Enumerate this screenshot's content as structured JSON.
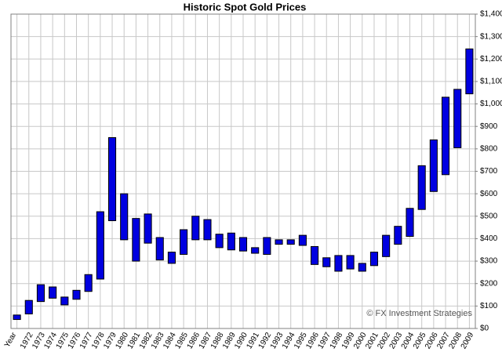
{
  "chart_data": {
    "type": "range_bar",
    "title": "Historic Spot Gold Prices",
    "x_label": "Year",
    "watermark": "© FX Investment Strategies",
    "categories": [
      null,
      "1972",
      "1973",
      "1974",
      "1975",
      "1976",
      "1977",
      "1978",
      "1979",
      "1980",
      "1981",
      "1982",
      "1983",
      "1984",
      "1985",
      "1986",
      "1987",
      "1988",
      "1989",
      "1990",
      "1991",
      "1992",
      "1993",
      "1994",
      "1995",
      "1996",
      "1997",
      "1998",
      "1999",
      "2000",
      "2001",
      "2002",
      "2003",
      "2004",
      "2005",
      "2006",
      "2007",
      "2008",
      "2009"
    ],
    "low": [
      40,
      65,
      120,
      135,
      105,
      130,
      165,
      220,
      480,
      395,
      300,
      380,
      305,
      290,
      330,
      395,
      395,
      360,
      350,
      345,
      335,
      330,
      375,
      375,
      370,
      285,
      275,
      255,
      265,
      255,
      280,
      320,
      375,
      410,
      530,
      610,
      685,
      805,
      1045
    ],
    "high": [
      60,
      125,
      195,
      185,
      140,
      170,
      240,
      520,
      850,
      600,
      490,
      510,
      405,
      340,
      440,
      500,
      485,
      420,
      425,
      405,
      360,
      405,
      395,
      395,
      415,
      365,
      315,
      325,
      325,
      290,
      340,
      415,
      455,
      535,
      725,
      840,
      1030,
      1065,
      1245
    ],
    "color": "#0000e0",
    "ylim": [
      0,
      1400
    ],
    "yticks": [
      {
        "value": 0,
        "label": "$0"
      },
      {
        "value": 100,
        "label": "$100"
      },
      {
        "value": 200,
        "label": "$200"
      },
      {
        "value": 300,
        "label": "$300"
      },
      {
        "value": 400,
        "label": "$400"
      },
      {
        "value": 500,
        "label": "$500"
      },
      {
        "value": 600,
        "label": "$600"
      },
      {
        "value": 700,
        "label": "$700"
      },
      {
        "value": 800,
        "label": "$800"
      },
      {
        "value": 900,
        "label": "$900"
      },
      {
        "value": 1000,
        "label": "$1,000"
      },
      {
        "value": 1100,
        "label": "$1,100"
      },
      {
        "value": 1200,
        "label": "$1,200"
      },
      {
        "value": 1300,
        "label": "$1,300"
      },
      {
        "value": 1400,
        "label": "$1,400"
      }
    ],
    "grid": true
  }
}
